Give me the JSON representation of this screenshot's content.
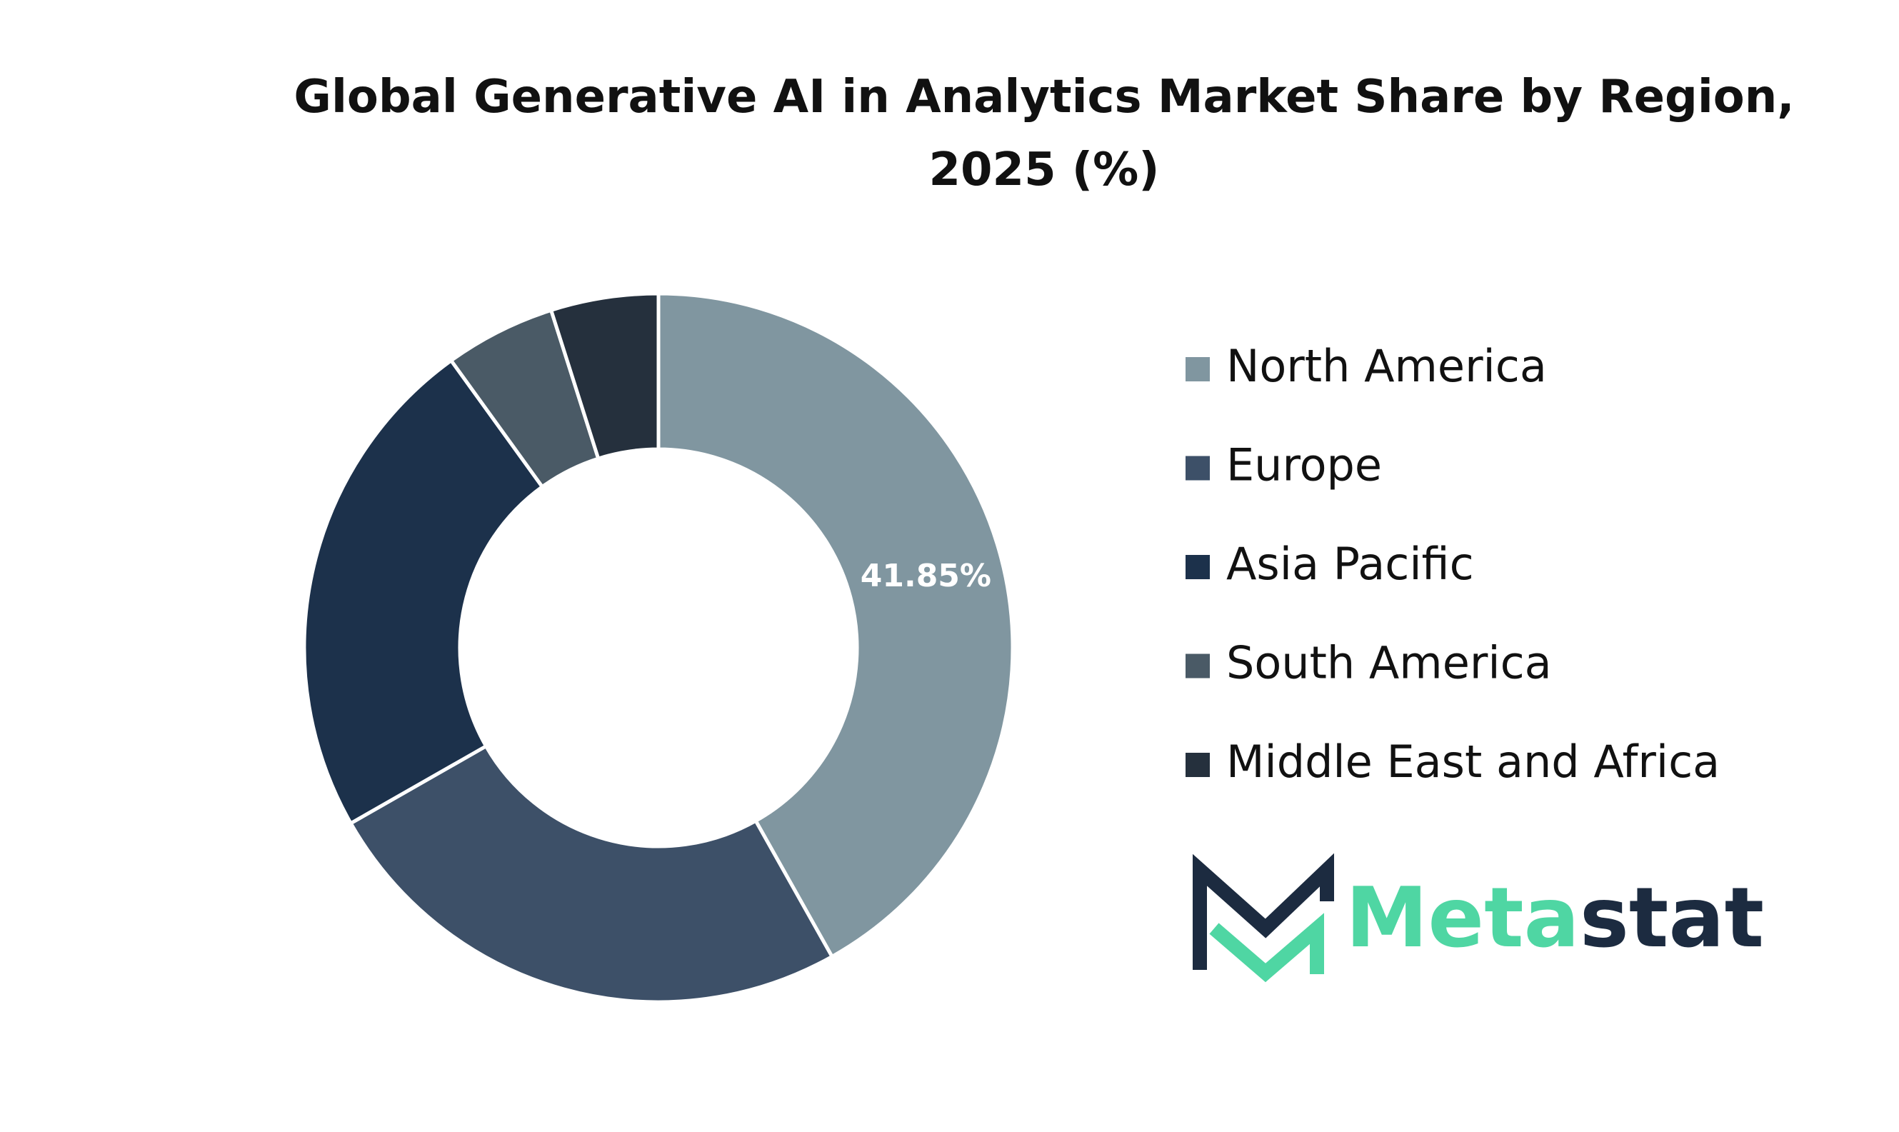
{
  "chart_data": {
    "type": "donut",
    "title": "Global Generative AI in Analytics Market Share by Region, 2025 (%)",
    "categories": [
      "North America",
      "Europe",
      "Asia Pacific",
      "South America",
      "Middle East and Africa"
    ],
    "values": [
      41.85,
      24.9,
      23.3,
      5.05,
      4.9
    ],
    "value_labels": [
      "41.85%",
      null,
      null,
      null,
      null
    ],
    "colors": [
      "#8096a0",
      "#3d5068",
      "#1c314b",
      "#4a5a66",
      "#25303d"
    ],
    "legend": "right"
  },
  "logo": {
    "accent": "Meta",
    "rest": "stat"
  }
}
